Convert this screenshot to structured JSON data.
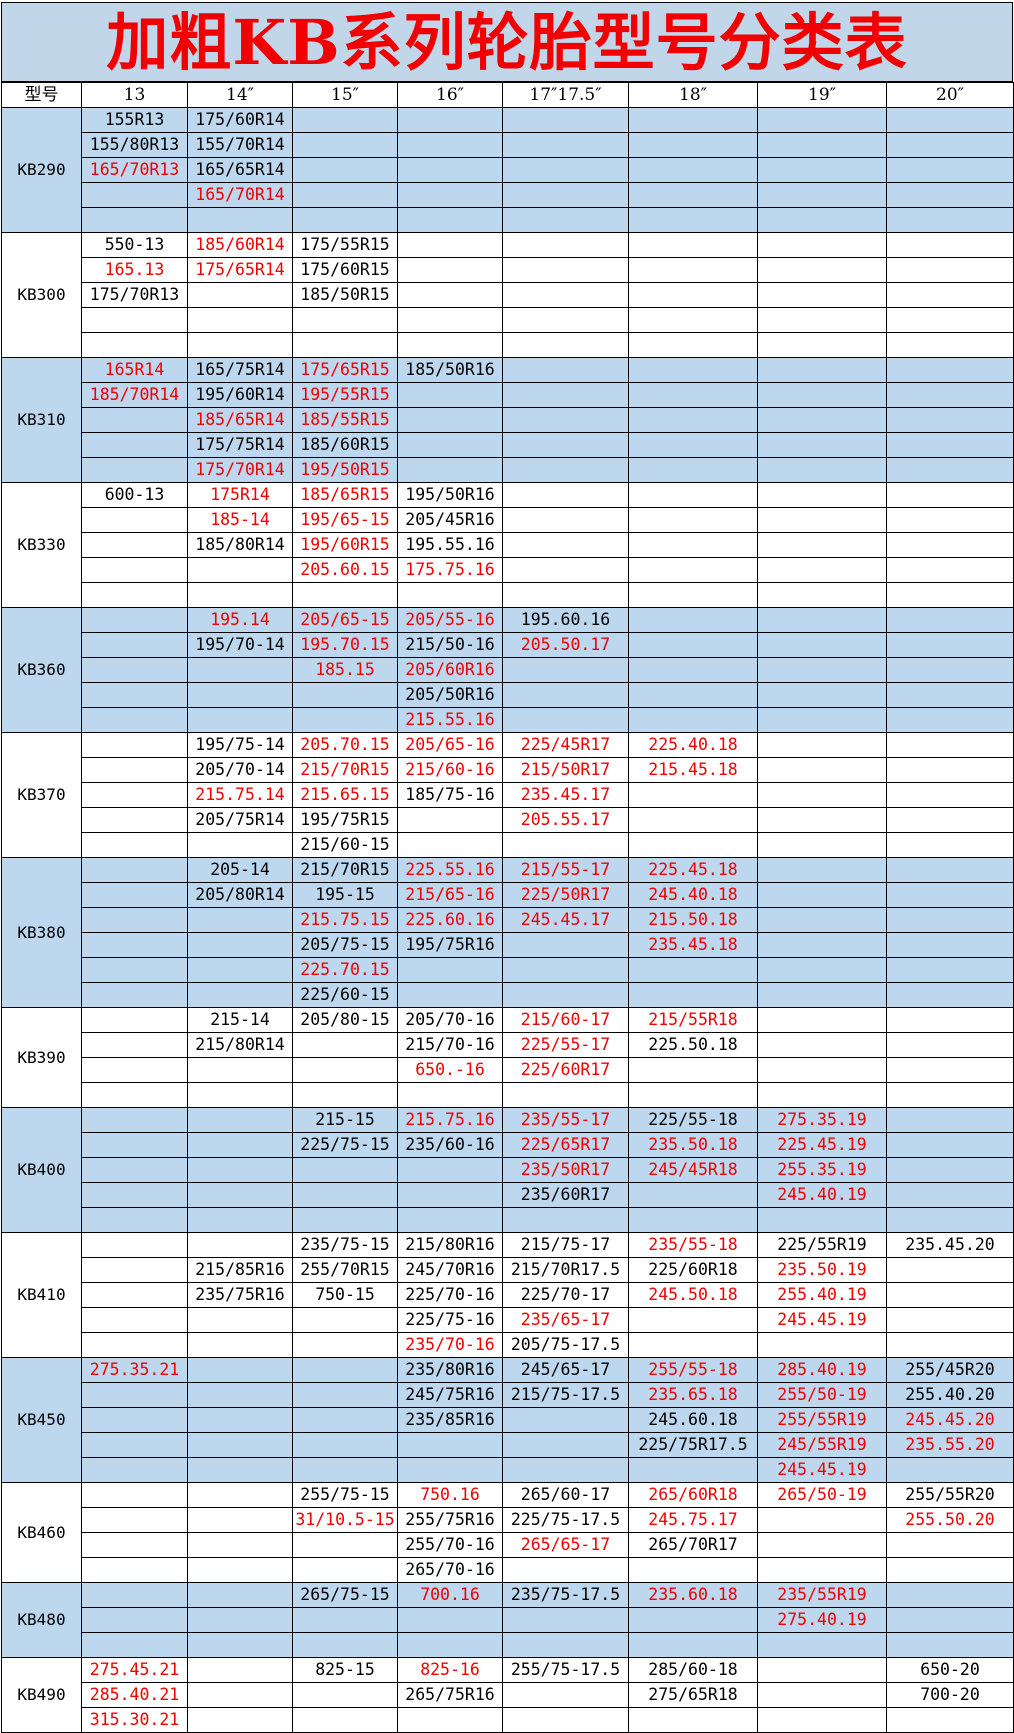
{
  "title": "加粗KB系列轮胎型号分类表",
  "colors": {
    "red_text": "#f00000",
    "band_fill": "#bdd7ee",
    "title_fill": "#c2d6ea"
  },
  "headers": [
    "型号",
    "13",
    "14″",
    "15″",
    "16″",
    "17″17.5″",
    "18″",
    "19″",
    "20″"
  ],
  "groups": [
    {
      "model": "KB290",
      "band": true,
      "rows": [
        [
          "155R13",
          "175/60R14",
          "",
          "",
          "",
          "",
          "",
          ""
        ],
        [
          "155/80R13",
          "155/70R14",
          "",
          "",
          "",
          "",
          "",
          ""
        ],
        [
          "165/70R13",
          "165/65R14",
          "",
          "",
          "",
          "",
          "",
          ""
        ],
        [
          "",
          "165/70R14",
          "",
          "",
          "",
          "",
          "",
          ""
        ],
        [
          "",
          "",
          "",
          "",
          "",
          "",
          "",
          ""
        ]
      ],
      "red": [
        [
          2,
          0
        ],
        [
          3,
          1
        ]
      ]
    },
    {
      "model": "KB300",
      "band": false,
      "rows": [
        [
          "550-13",
          "185/60R14",
          "175/55R15",
          "",
          "",
          "",
          "",
          ""
        ],
        [
          "165.13",
          "175/65R14",
          "175/60R15",
          "",
          "",
          "",
          "",
          ""
        ],
        [
          "175/70R13",
          "",
          "185/50R15",
          "",
          "",
          "",
          "",
          ""
        ],
        [
          "",
          "",
          "",
          "",
          "",
          "",
          "",
          ""
        ],
        [
          "",
          "",
          "",
          "",
          "",
          "",
          "",
          ""
        ]
      ],
      "red": [
        [
          0,
          1
        ],
        [
          1,
          0
        ],
        [
          1,
          1
        ]
      ]
    },
    {
      "model": "KB310",
      "band": true,
      "rows": [
        [
          "165R14",
          "165/75R14",
          "175/65R15",
          "185/50R16",
          "",
          "",
          "",
          ""
        ],
        [
          "185/70R14",
          "195/60R14",
          "195/55R15",
          "",
          "",
          "",
          "",
          ""
        ],
        [
          "",
          "185/65R14",
          "185/55R15",
          "",
          "",
          "",
          "",
          ""
        ],
        [
          "",
          "175/75R14",
          "185/60R15",
          "",
          "",
          "",
          "",
          ""
        ],
        [
          "",
          "175/70R14",
          "195/50R15",
          "",
          "",
          "",
          "",
          ""
        ]
      ],
      "red": [
        [
          0,
          0
        ],
        [
          0,
          2
        ],
        [
          1,
          0
        ],
        [
          1,
          2
        ],
        [
          2,
          1
        ],
        [
          2,
          2
        ],
        [
          4,
          1
        ],
        [
          4,
          2
        ]
      ]
    },
    {
      "model": "KB330",
      "band": false,
      "rows": [
        [
          "600-13",
          "175R14",
          "185/65R15",
          "195/50R16",
          "",
          "",
          "",
          ""
        ],
        [
          "",
          "185-14",
          "195/65-15",
          "205/45R16",
          "",
          "",
          "",
          ""
        ],
        [
          "",
          "185/80R14",
          "195/60R15",
          "195.55.16",
          "",
          "",
          "",
          ""
        ],
        [
          "",
          "",
          "205.60.15",
          "175.75.16",
          "",
          "",
          "",
          ""
        ],
        [
          "",
          "",
          "",
          "",
          "",
          "",
          "",
          ""
        ]
      ],
      "red": [
        [
          0,
          1
        ],
        [
          0,
          2
        ],
        [
          1,
          1
        ],
        [
          1,
          2
        ],
        [
          2,
          2
        ],
        [
          3,
          2
        ],
        [
          3,
          3
        ]
      ]
    },
    {
      "model": "KB360",
      "band": true,
      "rows": [
        [
          "",
          "195.14",
          "205/65-15",
          "205/55-16",
          "195.60.16",
          "",
          "",
          ""
        ],
        [
          "",
          "195/70-14",
          "195.70.15",
          "215/50-16",
          "205.50.17",
          "",
          "",
          ""
        ],
        [
          "",
          "",
          "185.15",
          "205/60R16",
          "",
          "",
          "",
          ""
        ],
        [
          "",
          "",
          "",
          "205/50R16",
          "",
          "",
          "",
          ""
        ],
        [
          "",
          "",
          "",
          "215.55.16",
          "",
          "",
          "",
          ""
        ]
      ],
      "red": [
        [
          0,
          1
        ],
        [
          0,
          2
        ],
        [
          0,
          3
        ],
        [
          1,
          2
        ],
        [
          1,
          4
        ],
        [
          2,
          2
        ],
        [
          2,
          3
        ],
        [
          4,
          3
        ]
      ]
    },
    {
      "model": "KB370",
      "band": false,
      "rows": [
        [
          "",
          "195/75-14",
          "205.70.15",
          "205/65-16",
          "225/45R17",
          "225.40.18",
          "",
          ""
        ],
        [
          "",
          "205/70-14",
          "215/70R15",
          "215/60-16",
          "215/50R17",
          "215.45.18",
          "",
          ""
        ],
        [
          "",
          "215.75.14",
          "215.65.15",
          "185/75-16",
          "235.45.17",
          "",
          "",
          ""
        ],
        [
          "",
          "205/75R14",
          "195/75R15",
          "",
          "205.55.17",
          "",
          "",
          ""
        ],
        [
          "",
          "",
          "215/60-15",
          "",
          "",
          "",
          "",
          ""
        ]
      ],
      "red": [
        [
          0,
          2
        ],
        [
          0,
          3
        ],
        [
          0,
          4
        ],
        [
          0,
          5
        ],
        [
          1,
          2
        ],
        [
          1,
          3
        ],
        [
          1,
          4
        ],
        [
          1,
          5
        ],
        [
          2,
          1
        ],
        [
          2,
          2
        ],
        [
          2,
          4
        ],
        [
          3,
          4
        ]
      ]
    },
    {
      "model": "KB380",
      "band": true,
      "rows": [
        [
          "",
          "205-14",
          "215/70R15",
          "225.55.16",
          "215/55-17",
          "225.45.18",
          "",
          ""
        ],
        [
          "",
          "205/80R14",
          "195-15",
          "215/65-16",
          "225/50R17",
          "245.40.18",
          "",
          ""
        ],
        [
          "",
          "",
          "215.75.15",
          "225.60.16",
          "245.45.17",
          "215.50.18",
          "",
          ""
        ],
        [
          "",
          "",
          "205/75-15",
          "195/75R16",
          "",
          "235.45.18",
          "",
          ""
        ],
        [
          "",
          "",
          "225.70.15",
          "",
          "",
          "",
          "",
          ""
        ],
        [
          "",
          "",
          "225/60-15",
          "",
          "",
          "",
          "",
          ""
        ]
      ],
      "red": [
        [
          0,
          3
        ],
        [
          0,
          4
        ],
        [
          0,
          5
        ],
        [
          1,
          3
        ],
        [
          1,
          4
        ],
        [
          1,
          5
        ],
        [
          2,
          2
        ],
        [
          2,
          3
        ],
        [
          2,
          4
        ],
        [
          2,
          5
        ],
        [
          3,
          5
        ],
        [
          4,
          2
        ]
      ]
    },
    {
      "model": "KB390",
      "band": false,
      "rows": [
        [
          "",
          "215-14",
          "205/80-15",
          "205/70-16",
          "215/60-17",
          "215/55R18",
          "",
          ""
        ],
        [
          "",
          "215/80R14",
          "",
          "215/70-16",
          "225/55-17",
          "225.50.18",
          "",
          ""
        ],
        [
          "",
          "",
          "",
          "650.-16",
          "225/60R17",
          "",
          "",
          ""
        ],
        [
          "",
          "",
          "",
          "",
          "",
          "",
          "",
          ""
        ]
      ],
      "red": [
        [
          0,
          4
        ],
        [
          0,
          5
        ],
        [
          1,
          4
        ],
        [
          2,
          3
        ],
        [
          2,
          4
        ]
      ]
    },
    {
      "model": "KB400",
      "band": true,
      "rows": [
        [
          "",
          "",
          "215-15",
          "215.75.16",
          "235/55-17",
          "225/55-18",
          "275.35.19",
          ""
        ],
        [
          "",
          "",
          "225/75-15",
          "235/60-16",
          "225/65R17",
          "235.50.18",
          "225.45.19",
          ""
        ],
        [
          "",
          "",
          "",
          "",
          "235/50R17",
          "245/45R18",
          "255.35.19",
          ""
        ],
        [
          "",
          "",
          "",
          "",
          "235/60R17",
          "",
          "245.40.19",
          ""
        ],
        [
          "",
          "",
          "",
          "",
          "",
          "",
          "",
          ""
        ]
      ],
      "red": [
        [
          0,
          3
        ],
        [
          0,
          4
        ],
        [
          0,
          6
        ],
        [
          1,
          4
        ],
        [
          1,
          5
        ],
        [
          1,
          6
        ],
        [
          2,
          4
        ],
        [
          2,
          5
        ],
        [
          2,
          6
        ],
        [
          3,
          6
        ]
      ]
    },
    {
      "model": "KB410",
      "band": false,
      "rows": [
        [
          "",
          "",
          "235/75-15",
          "215/80R16",
          "215/75-17",
          "235/55-18",
          "225/55R19",
          "235.45.20"
        ],
        [
          "",
          "215/85R16",
          "255/70R15",
          "245/70R16",
          "215/70R17.5",
          "225/60R18",
          "235.50.19",
          ""
        ],
        [
          "",
          "235/75R16",
          "750-15",
          "225/70-16",
          "225/70-17",
          "245.50.18",
          "255.40.19",
          ""
        ],
        [
          "",
          "",
          "",
          "225/75-16",
          "235/65-17",
          "",
          "245.45.19",
          ""
        ],
        [
          "",
          "",
          "",
          "235/70-16",
          "205/75-17.5",
          "",
          "",
          ""
        ]
      ],
      "red": [
        [
          0,
          5
        ],
        [
          1,
          6
        ],
        [
          2,
          5
        ],
        [
          2,
          6
        ],
        [
          3,
          4
        ],
        [
          3,
          6
        ],
        [
          4,
          3
        ]
      ]
    },
    {
      "model": "KB450",
      "band": true,
      "rows": [
        [
          "275.35.21",
          "",
          "",
          "235/80R16",
          "245/65-17",
          "255/55-18",
          "285.40.19",
          "255/45R20"
        ],
        [
          "",
          "",
          "",
          "245/75R16",
          "215/75-17.5",
          "235.65.18",
          "255/50-19",
          "255.40.20"
        ],
        [
          "",
          "",
          "",
          "235/85R16",
          "",
          "245.60.18",
          "255/55R19",
          "245.45.20"
        ],
        [
          "",
          "",
          "",
          "",
          "",
          "225/75R17.5",
          "245/55R19",
          "235.55.20"
        ],
        [
          "",
          "",
          "",
          "",
          "",
          "",
          "245.45.19",
          ""
        ]
      ],
      "red": [
        [
          0,
          0
        ],
        [
          0,
          5
        ],
        [
          0,
          6
        ],
        [
          1,
          5
        ],
        [
          1,
          6
        ],
        [
          2,
          6
        ],
        [
          2,
          7
        ],
        [
          3,
          6
        ],
        [
          3,
          7
        ],
        [
          4,
          6
        ]
      ]
    },
    {
      "model": "KB460",
      "band": false,
      "rows": [
        [
          "",
          "",
          "255/75-15",
          "750.16",
          "265/60-17",
          "265/60R18",
          "265/50-19",
          "255/55R20"
        ],
        [
          "",
          "",
          "31/10.5-15",
          "255/75R16",
          "225/75-17.5",
          "245.75.17",
          "",
          "255.50.20"
        ],
        [
          "",
          "",
          "",
          "255/70-16",
          "265/65-17",
          "265/70R17",
          "",
          ""
        ],
        [
          "",
          "",
          "",
          "265/70-16",
          "",
          "",
          "",
          ""
        ]
      ],
      "red": [
        [
          0,
          3
        ],
        [
          0,
          5
        ],
        [
          0,
          6
        ],
        [
          1,
          2
        ],
        [
          1,
          5
        ],
        [
          1,
          7
        ],
        [
          2,
          4
        ]
      ]
    },
    {
      "model": "KB480",
      "band": true,
      "rows": [
        [
          "",
          "",
          "265/75-15",
          "700.16",
          "235/75-17.5",
          "235.60.18",
          "235/55R19",
          ""
        ],
        [
          "",
          "",
          "",
          "",
          "",
          "",
          "275.40.19",
          ""
        ],
        [
          "",
          "",
          "",
          "",
          "",
          "",
          "",
          ""
        ]
      ],
      "red": [
        [
          0,
          3
        ],
        [
          0,
          5
        ],
        [
          0,
          6
        ],
        [
          1,
          6
        ]
      ]
    },
    {
      "model": "KB490",
      "band": false,
      "rows": [
        [
          "275.45.21",
          "",
          "825-15",
          "825-16",
          "255/75-17.5",
          "285/60-18",
          "",
          "650-20"
        ],
        [
          "285.40.21",
          "",
          "",
          "265/75R16",
          "",
          "275/65R18",
          "",
          "700-20"
        ],
        [
          "315.30.21",
          "",
          "",
          "",
          "",
          "",
          "",
          ""
        ]
      ],
      "red": [
        [
          0,
          0
        ],
        [
          0,
          3
        ],
        [
          1,
          0
        ],
        [
          2,
          0
        ]
      ]
    }
  ]
}
